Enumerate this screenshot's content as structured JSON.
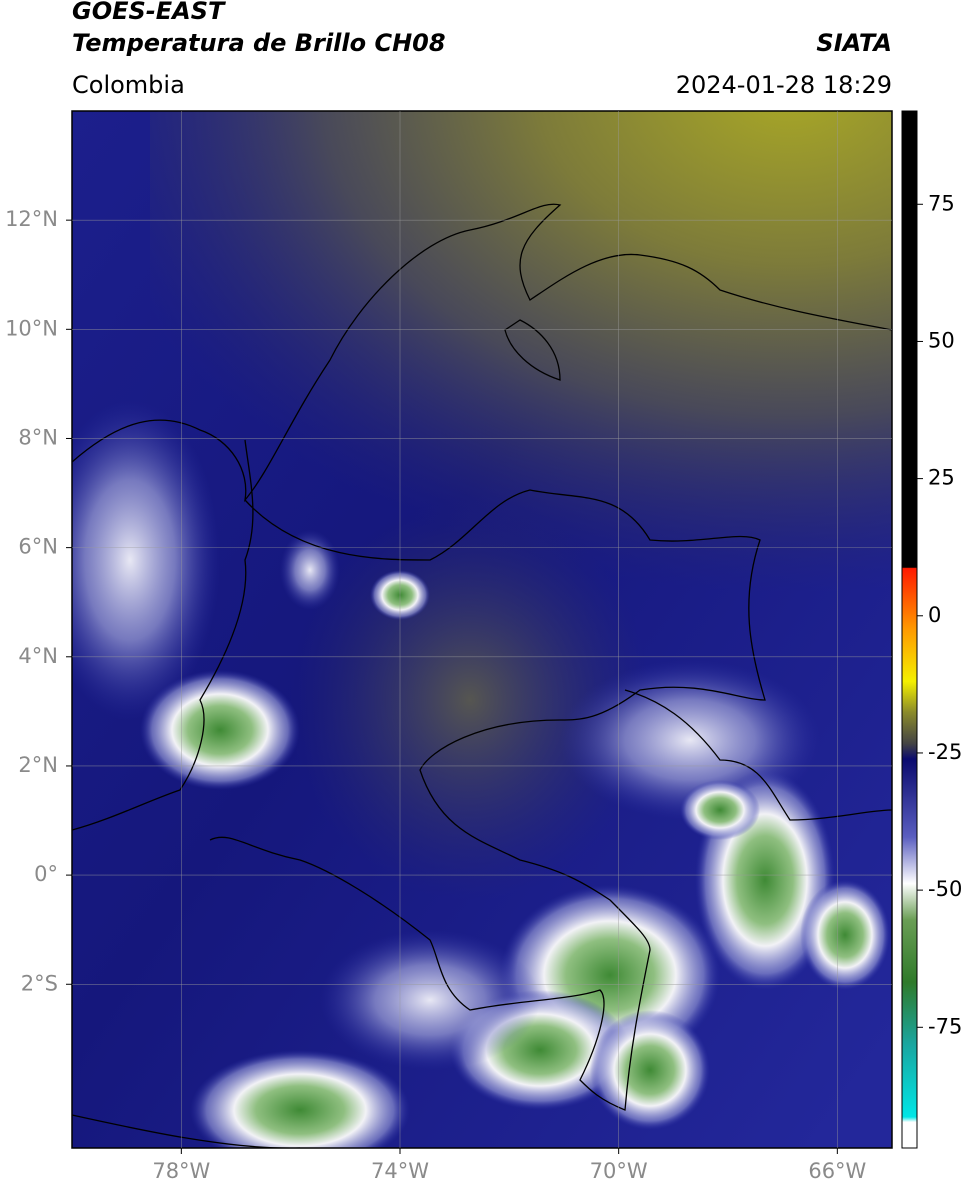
{
  "header": {
    "title": "GOES-EAST",
    "subtitle": "Temperatura de Brillo CH08",
    "source": "SIATA",
    "region": "Colombia",
    "datetime": "2024-01-28 18:29"
  },
  "map": {
    "lon_range": [
      -80,
      -65
    ],
    "lat_range": [
      -5,
      14
    ],
    "lon_ticks": [
      {
        "value": -78,
        "label": "78°W"
      },
      {
        "value": -74,
        "label": "74°W"
      },
      {
        "value": -70,
        "label": "70°W"
      },
      {
        "value": -66,
        "label": "66°W"
      }
    ],
    "lat_ticks": [
      {
        "value": 12,
        "label": "12°N"
      },
      {
        "value": 10,
        "label": "10°N"
      },
      {
        "value": 8,
        "label": "8°N"
      },
      {
        "value": 6,
        "label": "6°N"
      },
      {
        "value": 4,
        "label": "4°N"
      },
      {
        "value": 2,
        "label": "2°N"
      },
      {
        "value": 0,
        "label": "0°"
      },
      {
        "value": -2,
        "label": "2°S"
      }
    ]
  },
  "colorbar": {
    "range": [
      -97,
      92
    ],
    "ticks": [
      75,
      50,
      25,
      0,
      -25,
      -50,
      -75
    ]
  }
}
